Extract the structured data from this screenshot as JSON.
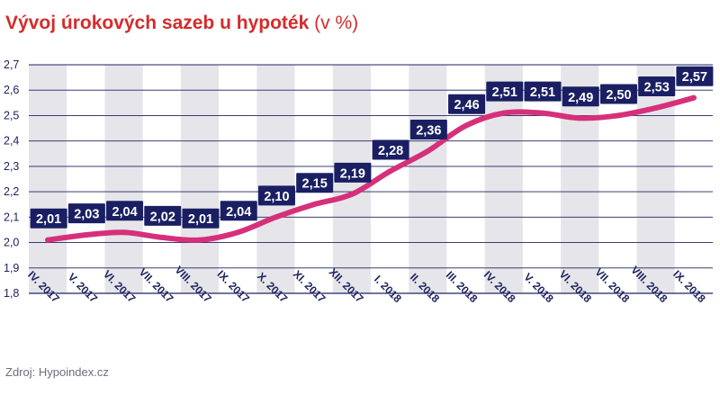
{
  "title": {
    "main": "Vývoj úrokových sazeb u hypoték",
    "unit": "(v %)"
  },
  "source": "Zdroj: Hypoindex.cz",
  "colors": {
    "title": "#d52b2b",
    "line": "#d6307a",
    "label_bg": "#1a1f63",
    "label_text": "#ffffff",
    "grid": "#1f2360",
    "band": "#e6e6ea",
    "axis_text": "#1f2360"
  },
  "chart_data": {
    "type": "line",
    "title": "Vývoj úrokových sazeb u hypoték (v %)",
    "xlabel": "",
    "ylabel": "",
    "ylim": [
      1.8,
      2.7
    ],
    "grid": true,
    "categories": [
      "IV. 2017",
      "V. 2017",
      "VI. 2017",
      "VII. 2017",
      "VIII. 2017",
      "IX. 2017",
      "X. 2017",
      "XI. 2017",
      "XII. 2017",
      "I. 2018",
      "II. 2018",
      "III. 2018",
      "IV. 2018",
      "V. 2018",
      "VI. 2018",
      "VII. 2018",
      "VIII. 2018",
      "IX. 2018"
    ],
    "series": [
      {
        "values": [
          2.01,
          2.03,
          2.04,
          2.02,
          2.01,
          2.04,
          2.1,
          2.15,
          2.19,
          2.28,
          2.36,
          2.46,
          2.51,
          2.51,
          2.49,
          2.5,
          2.53,
          2.57
        ],
        "labels": [
          "2,01",
          "2,03",
          "2,04",
          "2,02",
          "2,01",
          "2,04",
          "2,10",
          "2,15",
          "2,19",
          "2,28",
          "2,36",
          "2,46",
          "2,51",
          "2,51",
          "2,49",
          "2,50",
          "2,53",
          "2,57"
        ]
      }
    ],
    "yticks": [
      1.8,
      1.9,
      2.0,
      2.1,
      2.2,
      2.3,
      2.4,
      2.5,
      2.6,
      2.7
    ],
    "ytick_labels": [
      "1,8",
      "1,9",
      "2,0",
      "2,1",
      "2,2",
      "2,3",
      "2,4",
      "2,5",
      "2,6",
      "2,7"
    ]
  }
}
